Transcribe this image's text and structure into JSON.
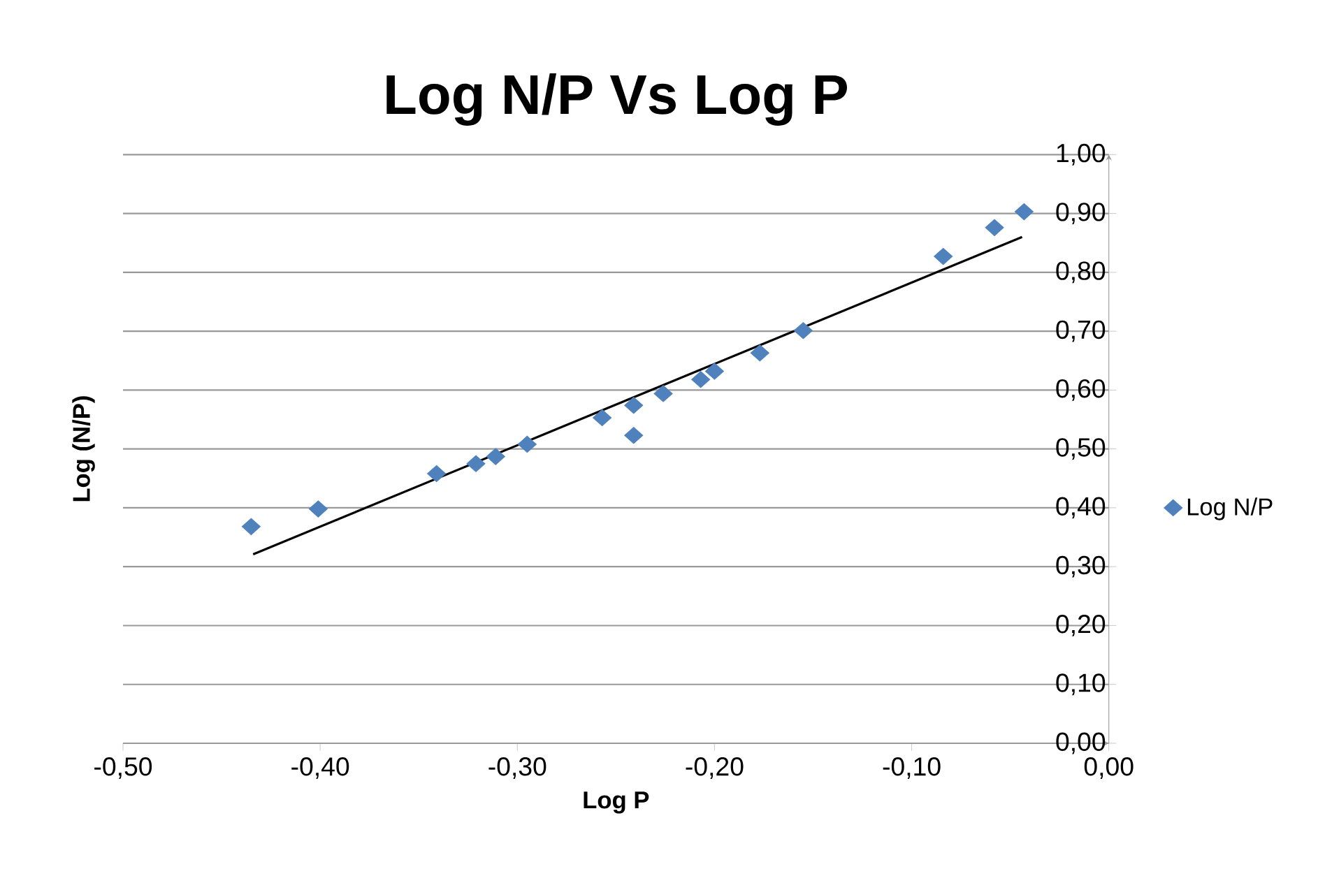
{
  "chart_data": {
    "type": "scatter",
    "title": "Log N/P Vs Log P",
    "xlabel": "Log P",
    "ylabel": "Log (N/P)",
    "series": [
      {
        "name": "Log N/P",
        "color": "#4f81bd",
        "marker": "diamond",
        "x": [
          -0.435,
          -0.401,
          -0.341,
          -0.321,
          -0.311,
          -0.295,
          -0.257,
          -0.241,
          -0.241,
          -0.226,
          -0.207,
          -0.2,
          -0.177,
          -0.155,
          -0.084,
          -0.058,
          -0.043
        ],
        "values": [
          0.368,
          0.398,
          0.458,
          0.475,
          0.487,
          0.508,
          0.553,
          0.574,
          0.523,
          0.594,
          0.618,
          0.632,
          0.663,
          0.701,
          0.827,
          0.876,
          0.903
        ]
      },
      {
        "type": "line",
        "marker": "none",
        "color": "#000000",
        "x": [
          -0.434,
          -0.044
        ],
        "values": [
          0.321,
          0.86
        ]
      }
    ],
    "grid": "y",
    "legend": "right",
    "line_style": "solid",
    "xlim": [
      -0.5,
      0
    ],
    "ylim": [
      0,
      1
    ],
    "xticks": [
      {
        "value": -0.5,
        "label": "-0,50"
      },
      {
        "value": -0.4,
        "label": "-0,40"
      },
      {
        "value": -0.3,
        "label": "-0,30"
      },
      {
        "value": -0.2,
        "label": "-0,20"
      },
      {
        "value": -0.1,
        "label": "-0,10"
      },
      {
        "value": 0,
        "label": "0,00"
      }
    ],
    "yticks": [
      {
        "value": 0,
        "label": "0,00"
      },
      {
        "value": 0.1,
        "label": "0,10"
      },
      {
        "value": 0.2,
        "label": "0,20"
      },
      {
        "value": 0.3,
        "label": "0,30"
      },
      {
        "value": 0.4,
        "label": "0,40"
      },
      {
        "value": 0.5,
        "label": "0,50"
      },
      {
        "value": 0.6,
        "label": "0,60"
      },
      {
        "value": 0.7,
        "label": "0,70"
      },
      {
        "value": 0.8,
        "label": "0,80"
      },
      {
        "value": 0.9,
        "label": "0,90"
      },
      {
        "value": 1.0,
        "label": "1,00"
      }
    ]
  }
}
